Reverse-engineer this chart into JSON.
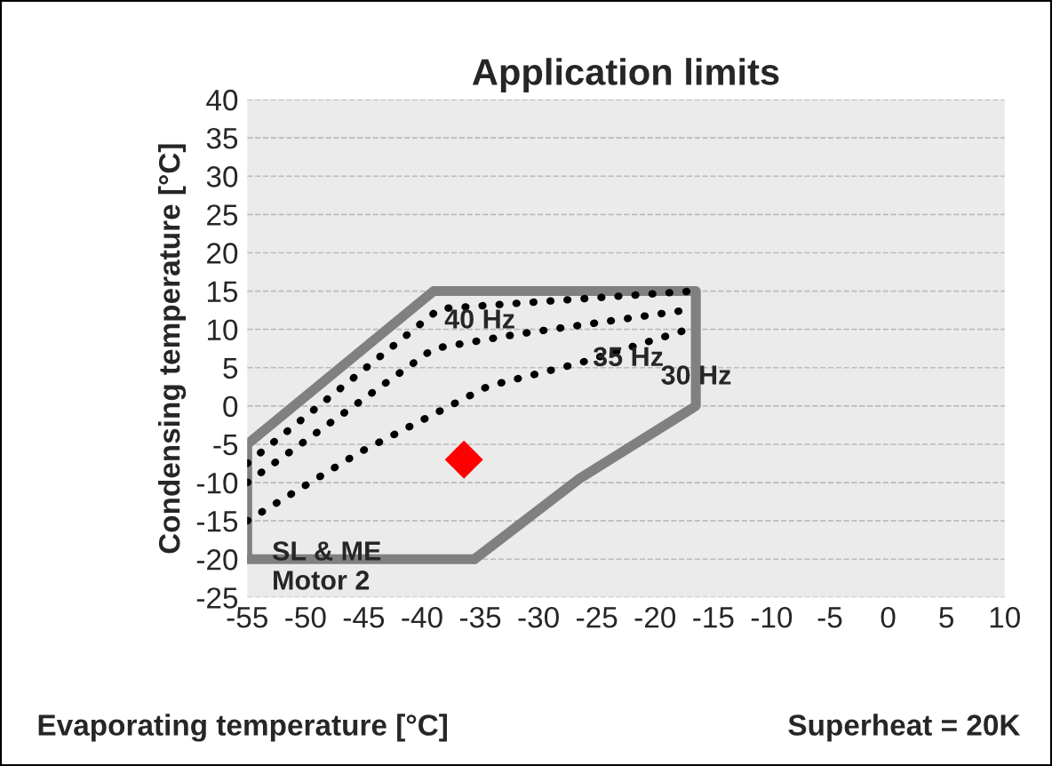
{
  "chart_data": {
    "type": "line",
    "title": "Application limits",
    "xlabel": "Evaporating temperature [°C]",
    "ylabel": "Condensing temperature [°C]",
    "series": [
      {
        "color": "#808080",
        "line_style": "solid",
        "marker": "none",
        "x": [
          -55,
          -55,
          -39,
          -16.5,
          -16.5,
          -26.5,
          -35.5
        ],
        "values": [
          -20,
          -5,
          15,
          15,
          0,
          -9.5,
          -20
        ]
      },
      {
        "color": "#808080",
        "line_style": "solid",
        "marker": "none",
        "x": [
          -55,
          -35.5
        ],
        "values": [
          -20,
          -20
        ]
      },
      {
        "color": "#000000",
        "line_style": "dotted",
        "marker": "none",
        "x": [
          -55,
          -38.5,
          -16.8
        ],
        "values": [
          -7.5,
          12.7,
          15
        ]
      },
      {
        "color": "#000000",
        "line_style": "dotted",
        "marker": "none",
        "x": [
          -55,
          -39,
          -31.7,
          -17.4
        ],
        "values": [
          -10,
          7.5,
          9.4,
          12.5
        ]
      },
      {
        "color": "#000000",
        "line_style": "dotted",
        "marker": "none",
        "x": [
          -55,
          -45.3,
          -34.3,
          -26.5,
          -17.4
        ],
        "values": [
          -15,
          -6,
          2.6,
          5.6,
          9.9
        ]
      },
      {
        "type": "scatter",
        "color": "#ff0000",
        "marker": "diamond",
        "x": [
          -36.4
        ],
        "values": [
          -7
        ]
      }
    ],
    "annotations": [
      {
        "text": "40 Hz",
        "x": -38.5,
        "y": 12.7
      },
      {
        "text": "35 Hz",
        "x": -31.7,
        "y": 9.4
      },
      {
        "text": "30 Hz",
        "x": -17.4,
        "y": 9.9
      },
      {
        "text": "SL & ME\nMotor 2",
        "x": -55,
        "y": -15
      },
      "Superheat = 20K"
    ],
    "xlim": [
      -55,
      10
    ],
    "xticks": [
      -55,
      -50,
      -45,
      -40,
      -35,
      -30,
      -25,
      -20,
      -15,
      -10,
      -5,
      0,
      5,
      10
    ],
    "ylim": [
      -25,
      40
    ],
    "yticks": [
      -25,
      -20,
      -15,
      -10,
      -5,
      0,
      5,
      10,
      15,
      20,
      25,
      30,
      35,
      40
    ],
    "grid": "y"
  }
}
